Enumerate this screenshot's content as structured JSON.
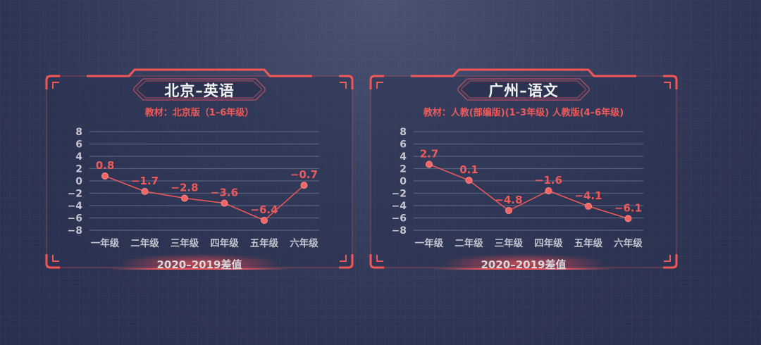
{
  "panels": [
    {
      "title": "北京–英语",
      "subtitle": "教材：北京版（1–6年级）",
      "footer": "2020–2019差值"
    },
    {
      "title": "广州–语文",
      "subtitle": "教材：人教(部编版)(1–3年级) 人教版(4–6年级)",
      "footer": "2020–2019差值"
    }
  ],
  "colors": {
    "accent": "#ee5a5a",
    "frame": "#f05858",
    "background": "#2e3553",
    "axis_text": "#c4c6d0",
    "gridline": "#59607c"
  },
  "chart_data": [
    {
      "type": "line",
      "title": "北京–英语",
      "subtitle": "教材：北京版（1–6年级）",
      "xlabel": "2020–2019差值",
      "ylabel": "",
      "categories": [
        "一年级",
        "二年级",
        "三年级",
        "四年级",
        "五年级",
        "六年级"
      ],
      "values": [
        0.8,
        -1.7,
        -2.8,
        -3.6,
        -6.4,
        -0.7
      ],
      "value_labels": [
        "0.8",
        "−1.7",
        "−2.8",
        "−3.6",
        "−6.4",
        "−0.7"
      ],
      "yticks": [
        "8",
        "6",
        "4",
        "2",
        "0",
        "−2",
        "−4",
        "−6",
        "−8"
      ],
      "ylim": [
        -8,
        8
      ],
      "grid": true,
      "legend": "none"
    },
    {
      "type": "line",
      "title": "广州–语文",
      "subtitle": "教材：人教(部编版)(1–3年级) 人教版(4–6年级)",
      "xlabel": "2020–2019差值",
      "ylabel": "",
      "categories": [
        "一年级",
        "二年级",
        "三年级",
        "四年级",
        "五年级",
        "六年级"
      ],
      "values": [
        2.7,
        0.1,
        -4.8,
        -1.6,
        -4.1,
        -6.1
      ],
      "value_labels": [
        "2.7",
        "0.1",
        "−4.8",
        "−1.6",
        "−4.1",
        "−6.1"
      ],
      "yticks": [
        "8",
        "6",
        "4",
        "2",
        "0",
        "−2",
        "−4",
        "−6",
        "−8"
      ],
      "ylim": [
        -8,
        8
      ],
      "grid": true,
      "legend": "none"
    }
  ]
}
